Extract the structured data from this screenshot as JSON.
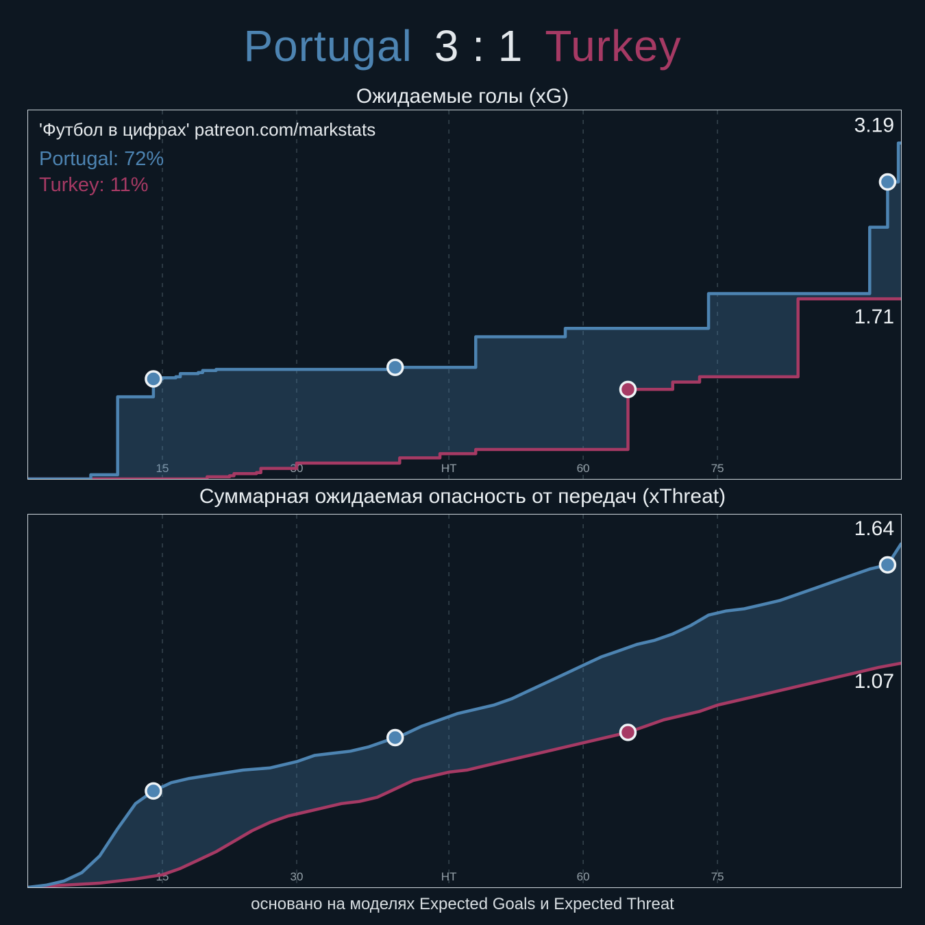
{
  "header": {
    "home_team": "Portugal",
    "score": "3 : 1",
    "away_team": "Turkey"
  },
  "watermark": "'Футбол в цифрах' patreon.com/markstats",
  "win_probability": {
    "home": "Portugal: 72%",
    "away": "Turkey: 11%"
  },
  "footer": "основано на моделях Expected Goals и Expected Threat",
  "colors": {
    "home": "#4d84b2",
    "away": "#a63a64",
    "score_text": "#e3e8ec",
    "area_fill": "rgba(77,132,178,0.28)",
    "background": "#0d1721",
    "panel_border": "#cfd7dd",
    "grid": "#36454f",
    "tick_text": "#94a0a8",
    "value_text": "#eef2f5",
    "marker_ring": "#eef3f6"
  },
  "chart_data": [
    {
      "id": "xg",
      "type": "area",
      "interpolation": "step",
      "title": "Ожидаемые голы (xG)",
      "xlabel": "",
      "ylabel": "",
      "xlim": [
        0,
        97.5
      ],
      "ylim": [
        0,
        3.5
      ],
      "grid": "vertical-dashed",
      "x_ticks": [
        {
          "minute": 15,
          "label": "15"
        },
        {
          "minute": 30,
          "label": "30"
        },
        {
          "minute": 47,
          "label": "HT"
        },
        {
          "minute": 62,
          "label": "60"
        },
        {
          "minute": 77,
          "label": "75"
        }
      ],
      "series": [
        {
          "name": "Portugal",
          "role": "home",
          "final_value": 3.19,
          "end_label": "3.19",
          "goal_minutes": [
            14,
            41,
            96
          ],
          "points": [
            [
              0,
              0
            ],
            [
              6.5,
              0
            ],
            [
              7,
              0.04
            ],
            [
              9.5,
              0.04
            ],
            [
              10,
              0.78
            ],
            [
              13.5,
              0.78
            ],
            [
              14,
              0.95
            ],
            [
              15,
              0.96
            ],
            [
              16.5,
              0.97
            ],
            [
              17,
              1.0
            ],
            [
              19,
              1.01
            ],
            [
              19.5,
              1.03
            ],
            [
              21,
              1.04
            ],
            [
              40.5,
              1.04
            ],
            [
              41,
              1.06
            ],
            [
              49.5,
              1.06
            ],
            [
              50,
              1.35
            ],
            [
              59.5,
              1.35
            ],
            [
              60,
              1.43
            ],
            [
              75.5,
              1.43
            ],
            [
              76,
              1.76
            ],
            [
              93.5,
              1.76
            ],
            [
              94,
              2.39
            ],
            [
              95.5,
              2.39
            ],
            [
              96,
              2.82
            ],
            [
              96.8,
              2.82
            ],
            [
              97.2,
              3.19
            ],
            [
              97.5,
              3.19
            ]
          ]
        },
        {
          "name": "Turkey",
          "role": "away",
          "final_value": 1.71,
          "end_label": "1.71",
          "goal_minutes": [
            67
          ],
          "points": [
            [
              0,
              0
            ],
            [
              19.5,
              0
            ],
            [
              20,
              0.02
            ],
            [
              22.5,
              0.03
            ],
            [
              23,
              0.05
            ],
            [
              25.5,
              0.06
            ],
            [
              26,
              0.1
            ],
            [
              29.5,
              0.1
            ],
            [
              30,
              0.15
            ],
            [
              41,
              0.15
            ],
            [
              41.5,
              0.2
            ],
            [
              45.5,
              0.2
            ],
            [
              46,
              0.24
            ],
            [
              49.5,
              0.24
            ],
            [
              50,
              0.28
            ],
            [
              66.5,
              0.28
            ],
            [
              67,
              0.85
            ],
            [
              71.5,
              0.85
            ],
            [
              72,
              0.92
            ],
            [
              74.5,
              0.92
            ],
            [
              75,
              0.97
            ],
            [
              85.5,
              0.97
            ],
            [
              86,
              1.71
            ],
            [
              97.5,
              1.71
            ]
          ]
        }
      ]
    },
    {
      "id": "xthreat",
      "type": "area",
      "interpolation": "linear",
      "title": "Суммарная ожидаемая опасность от передач (xThreat)",
      "xlabel": "",
      "ylabel": "",
      "xlim": [
        0,
        97.5
      ],
      "ylim": [
        0,
        1.78
      ],
      "grid": "vertical-dashed",
      "x_ticks": [
        {
          "minute": 15,
          "label": "15"
        },
        {
          "minute": 30,
          "label": "30"
        },
        {
          "minute": 47,
          "label": "HT"
        },
        {
          "minute": 62,
          "label": "60"
        },
        {
          "minute": 77,
          "label": "75"
        }
      ],
      "series": [
        {
          "name": "Portugal",
          "role": "home",
          "final_value": 1.64,
          "end_label": "1.64",
          "goal_minutes": [
            14,
            41,
            96
          ],
          "points": [
            [
              0,
              0
            ],
            [
              2,
              0.01
            ],
            [
              4,
              0.03
            ],
            [
              6,
              0.07
            ],
            [
              8,
              0.15
            ],
            [
              10,
              0.28
            ],
            [
              12,
              0.4
            ],
            [
              14,
              0.46
            ],
            [
              16,
              0.5
            ],
            [
              18,
              0.52
            ],
            [
              21,
              0.54
            ],
            [
              24,
              0.56
            ],
            [
              27,
              0.57
            ],
            [
              30,
              0.6
            ],
            [
              32,
              0.63
            ],
            [
              34,
              0.64
            ],
            [
              36,
              0.65
            ],
            [
              38,
              0.67
            ],
            [
              40,
              0.7
            ],
            [
              42,
              0.73
            ],
            [
              44,
              0.77
            ],
            [
              46,
              0.8
            ],
            [
              48,
              0.83
            ],
            [
              50,
              0.85
            ],
            [
              52,
              0.87
            ],
            [
              54,
              0.9
            ],
            [
              56,
              0.94
            ],
            [
              58,
              0.98
            ],
            [
              60,
              1.02
            ],
            [
              62,
              1.06
            ],
            [
              64,
              1.1
            ],
            [
              66,
              1.13
            ],
            [
              68,
              1.16
            ],
            [
              70,
              1.18
            ],
            [
              72,
              1.21
            ],
            [
              74,
              1.25
            ],
            [
              76,
              1.3
            ],
            [
              78,
              1.32
            ],
            [
              80,
              1.33
            ],
            [
              82,
              1.35
            ],
            [
              84,
              1.37
            ],
            [
              86,
              1.4
            ],
            [
              88,
              1.43
            ],
            [
              90,
              1.46
            ],
            [
              92,
              1.49
            ],
            [
              94,
              1.52
            ],
            [
              96,
              1.54
            ],
            [
              97.5,
              1.64
            ]
          ]
        },
        {
          "name": "Turkey",
          "role": "away",
          "final_value": 1.07,
          "end_label": "1.07",
          "goal_minutes": [
            67
          ],
          "points": [
            [
              0,
              0
            ],
            [
              4,
              0.01
            ],
            [
              8,
              0.02
            ],
            [
              12,
              0.04
            ],
            [
              15,
              0.06
            ],
            [
              17,
              0.09
            ],
            [
              19,
              0.13
            ],
            [
              21,
              0.17
            ],
            [
              23,
              0.22
            ],
            [
              25,
              0.27
            ],
            [
              27,
              0.31
            ],
            [
              29,
              0.34
            ],
            [
              31,
              0.36
            ],
            [
              33,
              0.38
            ],
            [
              35,
              0.4
            ],
            [
              37,
              0.41
            ],
            [
              39,
              0.43
            ],
            [
              41,
              0.47
            ],
            [
              43,
              0.51
            ],
            [
              45,
              0.53
            ],
            [
              47,
              0.55
            ],
            [
              49,
              0.56
            ],
            [
              51,
              0.58
            ],
            [
              53,
              0.6
            ],
            [
              55,
              0.62
            ],
            [
              57,
              0.64
            ],
            [
              59,
              0.66
            ],
            [
              61,
              0.68
            ],
            [
              63,
              0.7
            ],
            [
              65,
              0.72
            ],
            [
              67,
              0.74
            ],
            [
              69,
              0.77
            ],
            [
              71,
              0.8
            ],
            [
              73,
              0.82
            ],
            [
              75,
              0.84
            ],
            [
              77,
              0.87
            ],
            [
              79,
              0.89
            ],
            [
              81,
              0.91
            ],
            [
              83,
              0.93
            ],
            [
              85,
              0.95
            ],
            [
              87,
              0.97
            ],
            [
              89,
              0.99
            ],
            [
              91,
              1.01
            ],
            [
              93,
              1.03
            ],
            [
              95,
              1.05
            ],
            [
              97.5,
              1.07
            ]
          ]
        }
      ]
    }
  ]
}
